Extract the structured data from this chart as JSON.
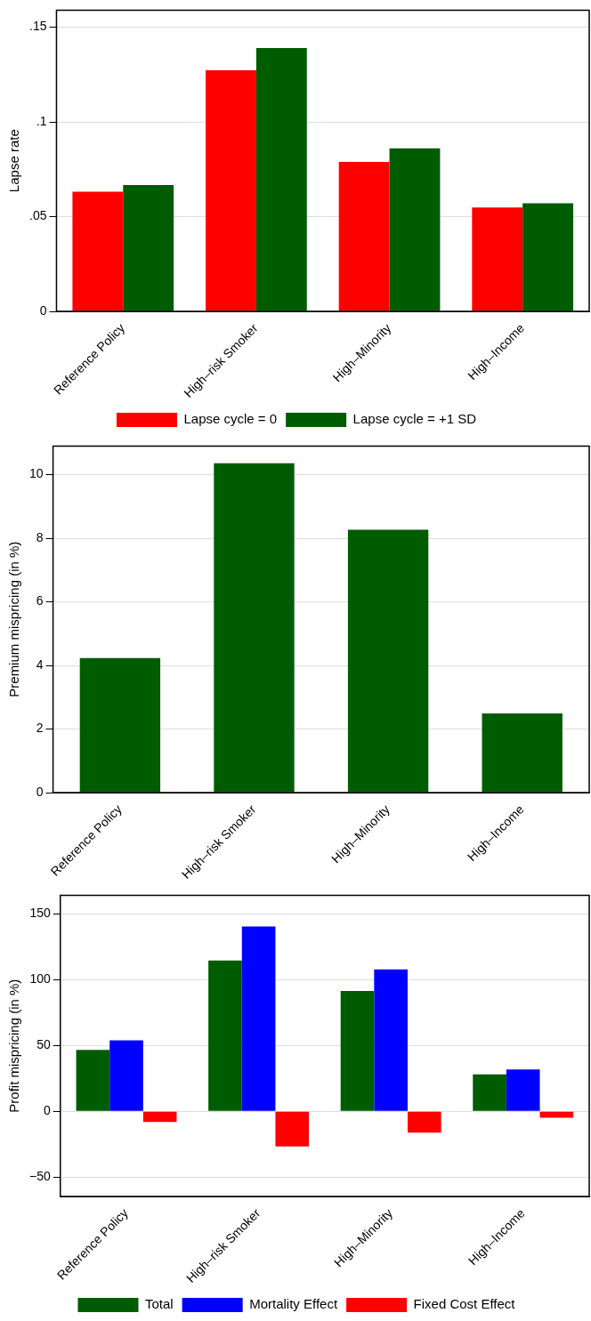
{
  "chart_data": [
    {
      "type": "bar",
      "ylabel": "Lapse rate",
      "categories": [
        "Reference Policy",
        "High–risk Smoker",
        "High–Minority",
        "High–Income"
      ],
      "series": [
        {
          "name": "Lapse cycle = 0",
          "color": "#ff0000",
          "values": [
            0.0632,
            0.1273,
            0.0789,
            0.0548
          ]
        },
        {
          "name": "Lapse cycle = +1 SD",
          "color": "#005c00",
          "values": [
            0.0667,
            0.139,
            0.0861,
            0.057
          ]
        }
      ],
      "ylim": [
        0,
        0.159
      ],
      "yticks": [
        0,
        {
          "value": 0.05,
          "label": ".05"
        },
        {
          "value": 0.1,
          "label": ".1"
        },
        {
          "value": 0.15,
          "label": ".15"
        }
      ],
      "grid": "y",
      "legend": "bottom"
    },
    {
      "type": "bar",
      "ylabel": "Premium mispricing (in %)",
      "categories": [
        "Reference Policy",
        "High–risk Smoker",
        "High–Minority",
        "High–Income"
      ],
      "series": [
        {
          "color": "#005c00",
          "values": [
            4.23,
            10.36,
            8.27,
            2.49
          ]
        }
      ],
      "ylim": [
        0,
        10.9
      ],
      "yticks": [
        0,
        2,
        4,
        6,
        8,
        10
      ],
      "grid": "y"
    },
    {
      "type": "bar",
      "ylabel": "Profit mispricing (in %)",
      "categories": [
        "Reference Policy",
        "High–risk Smoker",
        "High–Minority",
        "High–Income"
      ],
      "series": [
        {
          "name": "Total",
          "color": "#005c00",
          "values": [
            46.7,
            114.4,
            91.3,
            28
          ]
        },
        {
          "name": "Mortality Effect",
          "color": "#0000ff",
          "values": [
            53.9,
            140.3,
            107.8,
            31.8
          ]
        },
        {
          "name": "Fixed Cost Effect",
          "color": "#ff0000",
          "values": [
            -8,
            -26.6,
            -16.2,
            -4.8
          ]
        }
      ],
      "ylim": [
        -64.6,
        164
      ],
      "yticks": [
        {
          "value": -50,
          "label": "−50"
        },
        0,
        50,
        100,
        150
      ],
      "grid": "y",
      "legend": "bottom"
    }
  ]
}
